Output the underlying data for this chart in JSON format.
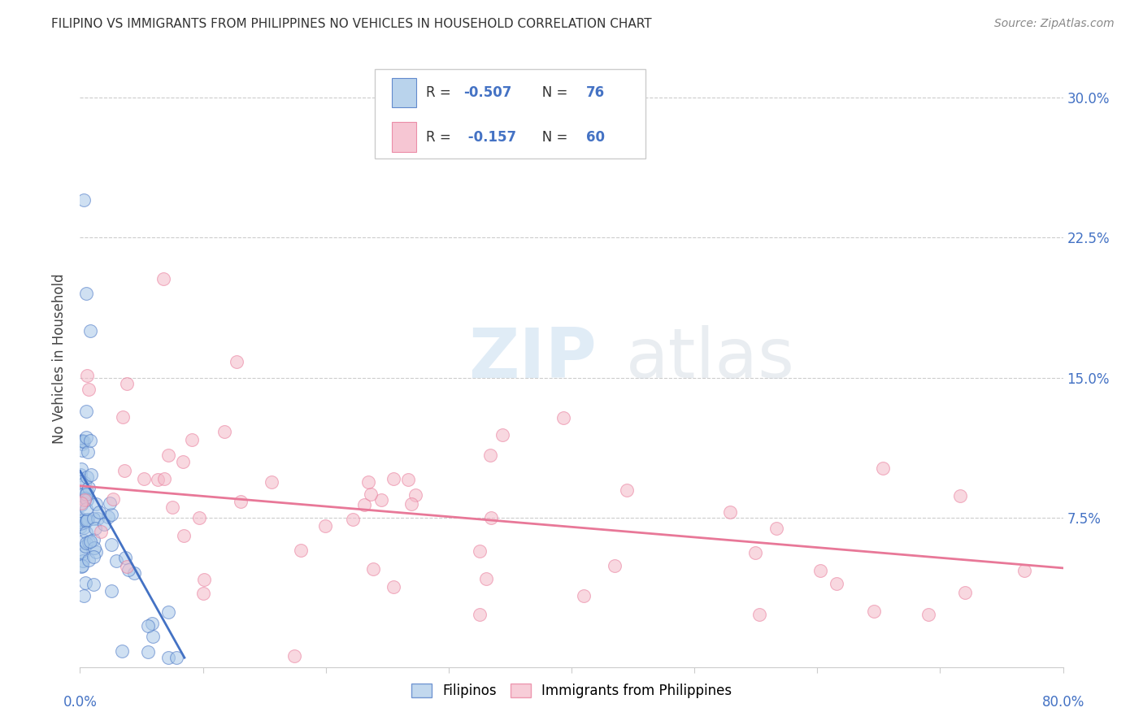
{
  "title": "FILIPINO VS IMMIGRANTS FROM PHILIPPINES NO VEHICLES IN HOUSEHOLD CORRELATION CHART",
  "source": "Source: ZipAtlas.com",
  "ylabel": "No Vehicles in Household",
  "ytick_labels": [
    "7.5%",
    "15.0%",
    "22.5%",
    "30.0%"
  ],
  "ytick_values": [
    0.075,
    0.15,
    0.225,
    0.3
  ],
  "xlim": [
    0.0,
    0.8
  ],
  "ylim": [
    -0.005,
    0.325
  ],
  "legend_r1_prefix": "R = ",
  "legend_r1_val": "-0.507",
  "legend_n1_prefix": "N = ",
  "legend_n1_val": "76",
  "legend_r2_prefix": "R = ",
  "legend_r2_val": "-0.157",
  "legend_n2_prefix": "N = ",
  "legend_n2_val": "60",
  "color_blue": "#a8c8e8",
  "color_pink": "#f4b8c8",
  "color_blue_dark": "#4472c4",
  "color_pink_dark": "#e87898",
  "color_blue_text": "#4472c4",
  "color_grid": "#cccccc",
  "watermark_zip_color": "#c8ddf0",
  "watermark_atlas_color": "#d0d8e0"
}
